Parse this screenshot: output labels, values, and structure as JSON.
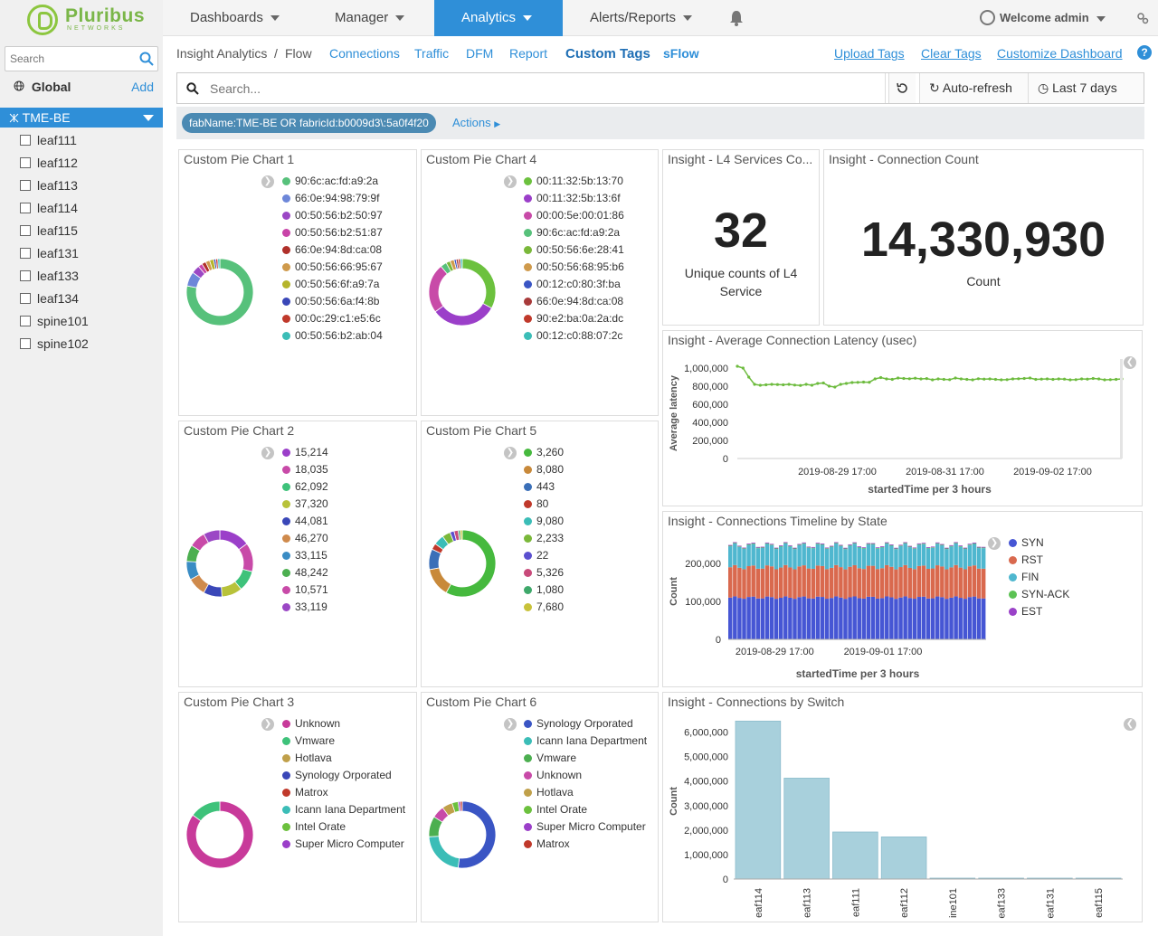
{
  "brand": {
    "name": "Pluribus",
    "sub": "NETWORKS"
  },
  "nav": {
    "dashboards": "Dashboards",
    "manager": "Manager",
    "analytics": "Analytics",
    "alerts": "Alerts/Reports",
    "welcome": "Welcome admin"
  },
  "sidebar": {
    "search_placeholder": "Search",
    "global": "Global",
    "add": "Add",
    "fabric": "TME-BE",
    "switches": [
      "leaf111",
      "leaf112",
      "leaf113",
      "leaf114",
      "leaf115",
      "leaf131",
      "leaf133",
      "leaf134",
      "spine101",
      "spine102"
    ]
  },
  "subnav": {
    "crumb1": "Insight Analytics",
    "sep": "/",
    "crumb2": "Flow",
    "connections": "Connections",
    "traffic": "Traffic",
    "dfm": "DFM",
    "report": "Report",
    "custom_tags": "Custom Tags",
    "sflow": "sFlow",
    "upload": "Upload Tags",
    "clear": "Clear Tags",
    "customize": "Customize Dashboard",
    "help": "?"
  },
  "query": {
    "placeholder": "Search...",
    "autorefresh": "Auto-refresh",
    "range": "Last 7 days"
  },
  "filter": {
    "pill": "fabName:TME-BE OR fabricId:b0009d3\\:5a0f4f20",
    "actions": "Actions"
  },
  "colors": {
    "accent": "#2f8fd8",
    "line": "#6dbb3e",
    "bar": "#a8d0dc",
    "syn": "#4656d4",
    "rst": "#d9694e",
    "fin": "#4fb7cf",
    "synack": "#5cc254",
    "est": "#9a42c8"
  },
  "pie1": {
    "title": "Custom Pie Chart 1",
    "items": [
      {
        "label": "90:6c:ac:fd:a9:2a",
        "color": "#57c17b",
        "value": 78
      },
      {
        "label": "66:0e:94:98:79:9f",
        "color": "#6d87d9",
        "value": 7
      },
      {
        "label": "00:50:56:b2:50:97",
        "color": "#9b47c5",
        "value": 4
      },
      {
        "label": "00:50:56:b2:51:87",
        "color": "#c844a8",
        "value": 2
      },
      {
        "label": "66:0e:94:8d:ca:08",
        "color": "#b0302a",
        "value": 2
      },
      {
        "label": "00:50:56:66:95:67",
        "color": "#cf9a4c",
        "value": 2
      },
      {
        "label": "00:50:56:6f:a9:7a",
        "color": "#b5b42b",
        "value": 2
      },
      {
        "label": "00:50:56:6a:f4:8b",
        "color": "#3a47b8",
        "value": 1
      },
      {
        "label": "00:0c:29:c1:e5:6c",
        "color": "#c0392b",
        "value": 1
      },
      {
        "label": "00:50:56:b2:ab:04",
        "color": "#3bbdb7",
        "value": 1
      }
    ]
  },
  "pie4": {
    "title": "Custom Pie Chart 4",
    "items": [
      {
        "label": "00:11:32:5b:13:70",
        "color": "#6cc13e",
        "value": 33
      },
      {
        "label": "00:11:32:5b:13:6f",
        "color": "#9b3fc9",
        "value": 32
      },
      {
        "label": "00:00:5e:00:01:86",
        "color": "#c84aa8",
        "value": 24
      },
      {
        "label": "90:6c:ac:fd:a9:2a",
        "color": "#57c17b",
        "value": 3
      },
      {
        "label": "00:50:56:6e:28:41",
        "color": "#7ab83a",
        "value": 2
      },
      {
        "label": "00:50:56:68:95:b6",
        "color": "#cf9a4c",
        "value": 2
      },
      {
        "label": "00:12:c0:80:3f:ba",
        "color": "#3a55c4",
        "value": 1
      },
      {
        "label": "66:0e:94:8d:ca:08",
        "color": "#a83a3a",
        "value": 1
      },
      {
        "label": "90:e2:ba:0a:2a:dc",
        "color": "#c0392b",
        "value": 1
      },
      {
        "label": "00:12:c0:88:07:2c",
        "color": "#3bbdb7",
        "value": 1
      }
    ]
  },
  "pie2": {
    "title": "Custom Pie Chart 2",
    "items": [
      {
        "label": "15,214",
        "color": "#9b3fc9",
        "value": 15
      },
      {
        "label": "18,035",
        "color": "#c84aa8",
        "value": 14
      },
      {
        "label": "62,092",
        "color": "#3ec27a",
        "value": 10
      },
      {
        "label": "37,320",
        "color": "#b8c23a",
        "value": 10
      },
      {
        "label": "44,081",
        "color": "#3a47b8",
        "value": 9
      },
      {
        "label": "46,270",
        "color": "#cf8a4c",
        "value": 9
      },
      {
        "label": "33,115",
        "color": "#3a8cc4",
        "value": 9
      },
      {
        "label": "48,242",
        "color": "#4caf50",
        "value": 8
      },
      {
        "label": "10,571",
        "color": "#c84aa8",
        "value": 8
      },
      {
        "label": "33,119",
        "color": "#9b47c5",
        "value": 8
      }
    ]
  },
  "pie5": {
    "title": "Custom Pie Chart 5",
    "items": [
      {
        "label": "3,260",
        "color": "#46b93e",
        "value": 58
      },
      {
        "label": "8,080",
        "color": "#c8893a",
        "value": 14
      },
      {
        "label": "443",
        "color": "#3a6fb8",
        "value": 10
      },
      {
        "label": "80",
        "color": "#c0392b",
        "value": 3
      },
      {
        "label": "9,080",
        "color": "#3bbdb7",
        "value": 5
      },
      {
        "label": "2,233",
        "color": "#7ab83a",
        "value": 4
      },
      {
        "label": "22",
        "color": "#5a4fcf",
        "value": 2
      },
      {
        "label": "5,326",
        "color": "#c84a7a",
        "value": 2
      },
      {
        "label": "1,080",
        "color": "#3ea86a",
        "value": 1
      },
      {
        "label": "7,680",
        "color": "#c8c23a",
        "value": 1
      }
    ]
  },
  "pie3": {
    "title": "Custom Pie Chart 3",
    "items": [
      {
        "label": "Unknown",
        "color": "#c83a9a",
        "value": 85
      },
      {
        "label": "Vmware",
        "color": "#3ec27a",
        "value": 15
      },
      {
        "label": "Hotlava",
        "color": "#c0a04a",
        "value": 0
      },
      {
        "label": "Synology Orporated",
        "color": "#3a47b8",
        "value": 0
      },
      {
        "label": "Matrox",
        "color": "#c0392b",
        "value": 0
      },
      {
        "label": "Icann Iana Department",
        "color": "#3bbdb7",
        "value": 0
      },
      {
        "label": "Intel Orate",
        "color": "#6cc13e",
        "value": 0
      },
      {
        "label": "Super Micro Computer",
        "color": "#9b3fc9",
        "value": 0
      }
    ]
  },
  "pie6": {
    "title": "Custom Pie Chart 6",
    "items": [
      {
        "label": "Synology Orporated",
        "color": "#3a55c4",
        "value": 52
      },
      {
        "label": "Icann Iana Department",
        "color": "#3bbdb7",
        "value": 22
      },
      {
        "label": "Vmware",
        "color": "#4caf50",
        "value": 10
      },
      {
        "label": "Unknown",
        "color": "#c84aa8",
        "value": 6
      },
      {
        "label": "Hotlava",
        "color": "#c0a04a",
        "value": 5
      },
      {
        "label": "Intel Orate",
        "color": "#6cc13e",
        "value": 3
      },
      {
        "label": "Super Micro Computer",
        "color": "#9b3fc9",
        "value": 1
      },
      {
        "label": "Matrox",
        "color": "#c0392b",
        "value": 1
      }
    ]
  },
  "l4": {
    "title": "Insight - L4 Services Co...",
    "value": "32",
    "caption": "Unique counts of L4 Service"
  },
  "conn": {
    "title": "Insight - Connection Count",
    "value": "14,330,930",
    "caption": "Count"
  },
  "latency": {
    "title": "Insight - Average Connection Latency (usec)"
  },
  "timeline": {
    "title": "Insight - Connections Timeline by State"
  },
  "byswitch": {
    "title": "Insight - Connections by Switch"
  },
  "chart_data": [
    {
      "type": "line",
      "title": "Insight - Average Connection Latency (usec)",
      "ylabel": "Average latency",
      "xlabel": "startedTime per 3 hours",
      "ylim": [
        0,
        1000000
      ],
      "yticks": [
        "1,000,000",
        "800,000",
        "600,000",
        "400,000",
        "200,000",
        "0"
      ],
      "xticks": [
        "2019-08-29 17:00",
        "2019-08-31 17:00",
        "2019-09-02 17:00"
      ],
      "values": [
        1020000,
        1000000,
        900000,
        820000,
        810000,
        815000,
        820000,
        818000,
        815000,
        820000,
        812000,
        808000,
        820000,
        810000,
        830000,
        835000,
        800000,
        790000,
        820000,
        830000,
        840000,
        842000,
        845000,
        843000,
        880000,
        895000,
        880000,
        875000,
        890000,
        885000,
        882000,
        888000,
        880000,
        884000,
        870000,
        880000,
        875000,
        872000,
        890000,
        880000,
        875000,
        870000,
        882000,
        878000,
        880000,
        875000,
        870000,
        872000,
        880000,
        882000,
        885000,
        890000,
        875000,
        878000,
        880000,
        875000,
        880000,
        878000,
        870000,
        872000,
        880000,
        878000,
        885000,
        880000,
        870000,
        872000,
        875000,
        880000
      ]
    },
    {
      "type": "bar",
      "title": "Insight - Connections Timeline by State",
      "stacked": true,
      "ylabel": "Count",
      "xlabel": "startedTime per 3 hours",
      "ylim": [
        0,
        250000
      ],
      "yticks": [
        "200,000",
        "100,000",
        "0"
      ],
      "xticks": [
        "2019-08-29 17:00",
        "2019-09-01 17:00"
      ],
      "series": [
        {
          "name": "SYN",
          "value": 110000
        },
        {
          "name": "RST",
          "value": 80000
        },
        {
          "name": "FIN",
          "value": 55000
        },
        {
          "name": "SYN-ACK",
          "value": 1500
        },
        {
          "name": "EST",
          "value": 2000
        }
      ],
      "n_bars": 56
    },
    {
      "type": "bar",
      "title": "Insight - Connections by Switch",
      "ylabel": "Count",
      "ylim": [
        0,
        6500000
      ],
      "yticks": [
        "6,000,000",
        "5,000,000",
        "4,000,000",
        "3,000,000",
        "2,000,000",
        "1,000,000",
        "0"
      ],
      "categories": [
        "eaf114",
        "eaf113",
        "eaf111",
        "eaf112",
        "ine101",
        "eaf133",
        "eaf131",
        "eaf115"
      ],
      "values": [
        6450000,
        4120000,
        1920000,
        1720000,
        15000,
        12000,
        10000,
        8000
      ]
    }
  ]
}
